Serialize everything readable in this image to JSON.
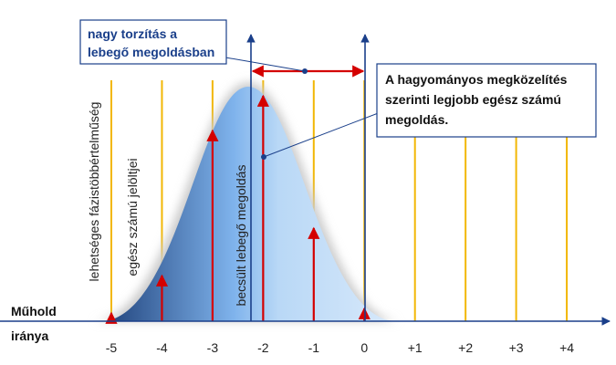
{
  "callout_bias": {
    "lines": [
      "nagy torzítás a",
      "lebegő megoldásban"
    ]
  },
  "callout_integer": {
    "lines": [
      "A hagyományos megközelítés",
      "szerinti legjobb egész számú",
      "megoldás."
    ]
  },
  "vertical_labels": [
    "lehetséges fázistöbbértelműség",
    "egész számú jelöltjei",
    "becsült lebegő megoldás"
  ],
  "satellite_label": [
    "Műhold",
    "iránya"
  ],
  "ticks": [
    "-5",
    "-4",
    "-3",
    "-2",
    "-1",
    "0",
    "+1",
    "+2",
    "+3",
    "+4"
  ]
}
